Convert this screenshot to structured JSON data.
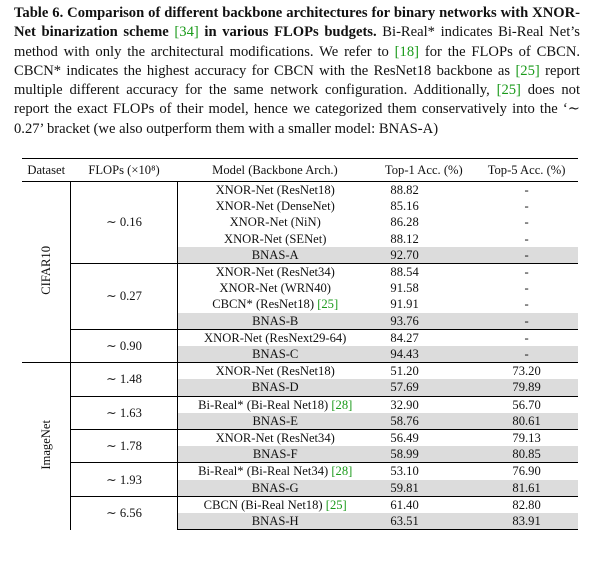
{
  "caption": [
    {
      "text": "Table 6. Comparison of different backbone architectures for binary networks with XNOR-Net binarization scheme ",
      "style": "bold"
    },
    {
      "text": "[34]",
      "style": "cite"
    },
    {
      "text": " in various FLOPs budgets.",
      "style": "bold"
    },
    {
      "text": " Bi-Real* indicates Bi-Real Net’s method with only the architectural modifications. We refer to ",
      "style": "normal"
    },
    {
      "text": "[18]",
      "style": "cite"
    },
    {
      "text": " for the FLOPs of CBCN. CBCN* indicates the highest accuracy for CBCN with the ResNet18 backbone as ",
      "style": "normal"
    },
    {
      "text": "[25]",
      "style": "cite"
    },
    {
      "text": " report multiple different accuracy for the same network configuration. Additionally, ",
      "style": "normal"
    },
    {
      "text": "[25]",
      "style": "cite"
    },
    {
      "text": " does not report the exact FLOPs of their model, hence we categorized them conservatively into the ‘∼ 0.27’ bracket (we also outperform them with a smaller model: BNAS-A)",
      "style": "normal"
    }
  ],
  "table": {
    "header": [
      "Dataset",
      "FLOPs (×10⁸)",
      "Model (Backbone Arch.)",
      "Top-1 Acc. (%)",
      "Top-5 Acc. (%)"
    ],
    "datasets": [
      {
        "name": "CIFAR10",
        "groups": [
          {
            "flops": "∼ 0.16",
            "rows": [
              {
                "model": "XNOR-Net (ResNet18)",
                "top1": "88.82",
                "top5": "-"
              },
              {
                "model": "XNOR-Net (DenseNet)",
                "top1": "85.16",
                "top5": "-"
              },
              {
                "model": "XNOR-Net (NiN)",
                "top1": "86.28",
                "top5": "-"
              },
              {
                "model": "XNOR-Net (SENet)",
                "top1": "88.12",
                "top5": "-"
              },
              {
                "model": "BNAS-A",
                "top1": "92.70",
                "top5": "-"
              }
            ]
          },
          {
            "flops": "∼ 0.27",
            "rows": [
              {
                "model": "XNOR-Net (ResNet34)",
                "top1": "88.54",
                "top5": "-"
              },
              {
                "model": "XNOR-Net (WRN40)",
                "top1": "91.58",
                "top5": "-"
              },
              {
                "model": "CBCN* (ResNet18)",
                "cite": "[25]",
                "top1": "91.91",
                "top5": "-"
              },
              {
                "model": "BNAS-B",
                "top1": "93.76",
                "top5": "-"
              }
            ]
          },
          {
            "flops": "∼ 0.90",
            "rows": [
              {
                "model": "XNOR-Net (ResNext29-64)",
                "top1": "84.27",
                "top5": "-"
              },
              {
                "model": "BNAS-C",
                "top1": "94.43",
                "top5": "-"
              }
            ]
          }
        ]
      },
      {
        "name": "ImageNet",
        "groups": [
          {
            "flops": "∼ 1.48",
            "rows": [
              {
                "model": "XNOR-Net (ResNet18)",
                "top1": "51.20",
                "top5": "73.20"
              },
              {
                "model": "BNAS-D",
                "top1": "57.69",
                "top5": "79.89"
              }
            ]
          },
          {
            "flops": "∼ 1.63",
            "rows": [
              {
                "model": "Bi-Real* (Bi-Real Net18)",
                "cite": "[28]",
                "top1": "32.90",
                "top5": "56.70"
              },
              {
                "model": "BNAS-E",
                "top1": "58.76",
                "top5": "80.61"
              }
            ]
          },
          {
            "flops": "∼ 1.78",
            "rows": [
              {
                "model": "XNOR-Net (ResNet34)",
                "top1": "56.49",
                "top5": "79.13"
              },
              {
                "model": "BNAS-F",
                "top1": "58.99",
                "top5": "80.85"
              }
            ]
          },
          {
            "flops": "∼ 1.93",
            "rows": [
              {
                "model": "Bi-Real* (Bi-Real Net34)",
                "cite": "[28]",
                "top1": "53.10",
                "top5": "76.90"
              },
              {
                "model": "BNAS-G",
                "top1": "59.81",
                "top5": "81.61"
              }
            ]
          },
          {
            "flops": "∼ 6.56",
            "rows": [
              {
                "model": "CBCN (Bi-Real Net18)",
                "cite": "[25]",
                "top1": "61.40",
                "top5": "82.80"
              },
              {
                "model": "BNAS-H",
                "top1": "63.51",
                "top5": "83.91"
              }
            ]
          }
        ]
      }
    ]
  }
}
